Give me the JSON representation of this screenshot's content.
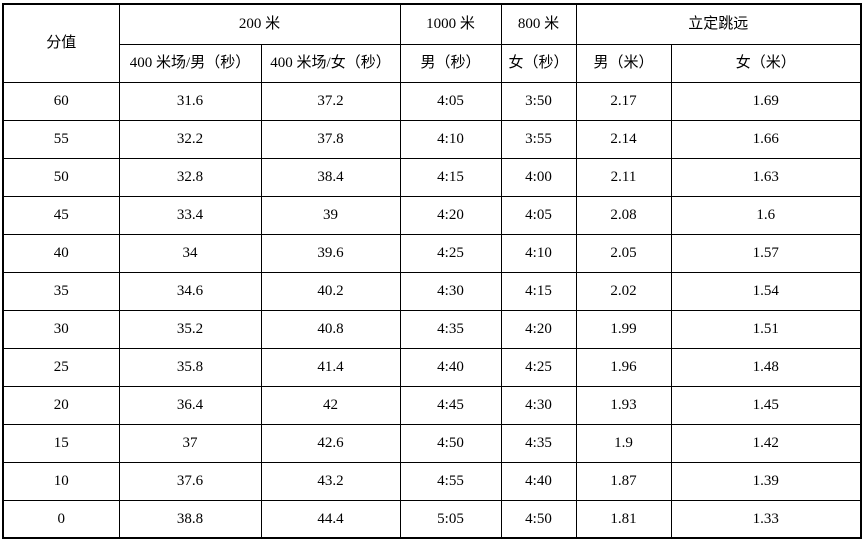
{
  "table": {
    "header": {
      "score_label": "分值",
      "group_200m": "200 米",
      "group_1000m": "1000 米",
      "group_800m": "800 米",
      "group_long_jump": "立定跳远",
      "sub_400m_male": "400 米场/男（秒）",
      "sub_400m_female": "400 米场/女（秒）",
      "sub_1000m_male": "男（秒）",
      "sub_800m_female": "女（秒）",
      "sub_jump_male": "男（米）",
      "sub_jump_female": "女（米）"
    },
    "rows": [
      [
        "60",
        "31.6",
        "37.2",
        "4:05",
        "3:50",
        "2.17",
        "1.69"
      ],
      [
        "55",
        "32.2",
        "37.8",
        "4:10",
        "3:55",
        "2.14",
        "1.66"
      ],
      [
        "50",
        "32.8",
        "38.4",
        "4:15",
        "4:00",
        "2.11",
        "1.63"
      ],
      [
        "45",
        "33.4",
        "39",
        "4:20",
        "4:05",
        "2.08",
        "1.6"
      ],
      [
        "40",
        "34",
        "39.6",
        "4:25",
        "4:10",
        "2.05",
        "1.57"
      ],
      [
        "35",
        "34.6",
        "40.2",
        "4:30",
        "4:15",
        "2.02",
        "1.54"
      ],
      [
        "30",
        "35.2",
        "40.8",
        "4:35",
        "4:20",
        "1.99",
        "1.51"
      ],
      [
        "25",
        "35.8",
        "41.4",
        "4:40",
        "4:25",
        "1.96",
        "1.48"
      ],
      [
        "20",
        "36.4",
        "42",
        "4:45",
        "4:30",
        "1.93",
        "1.45"
      ],
      [
        "15",
        "37",
        "42.6",
        "4:50",
        "4:35",
        "1.9",
        "1.42"
      ],
      [
        "10",
        "37.6",
        "43.2",
        "4:55",
        "4:40",
        "1.87",
        "1.39"
      ],
      [
        "0",
        "38.8",
        "44.4",
        "5:05",
        "4:50",
        "1.81",
        "1.33"
      ]
    ]
  },
  "colors": {
    "border": "#000000",
    "background": "#ffffff",
    "text": "#000000"
  }
}
